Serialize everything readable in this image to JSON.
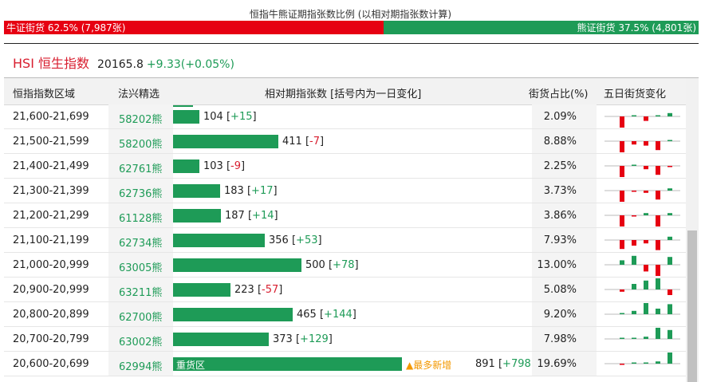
{
  "ratio": {
    "title": "恒指牛熊证期指张数比例 (以相对期指张数计算)",
    "bull_label": "牛证街货 62.5% (7,987张)",
    "bear_label": "熊证街货 37.5% (4,801张)",
    "bull_fraction": 0.625,
    "bear_fraction": 0.375,
    "bull_color": "#e60012",
    "bear_color": "#1e9b57"
  },
  "index": {
    "name": "HSI 恒生指数",
    "value": "20165.8",
    "change": "+9.33(+0.05%)"
  },
  "table": {
    "headers": {
      "range": "恒指指数区域",
      "code": "法兴精选",
      "contracts": "相对期指张数 [括号内为一日变化]",
      "share": "街货占比(%)",
      "spark": "五日街货变化"
    },
    "max_contracts": 891,
    "rows": [
      {
        "range": "21,600-21,699",
        "code": "58202熊",
        "contracts": 104,
        "change": "+15",
        "share": "2.09%",
        "spark": [
          -1.0,
          0.1,
          -0.4,
          0.1,
          0.3
        ]
      },
      {
        "range": "21,500-21,599",
        "code": "58200熊",
        "contracts": 411,
        "change": "-7",
        "share": "8.88%",
        "spark": [
          -1.0,
          -0.3,
          -0.4,
          -0.8,
          0.0
        ]
      },
      {
        "range": "21,400-21,499",
        "code": "62761熊",
        "contracts": 103,
        "change": "-9",
        "share": "2.25%",
        "spark": [
          -1.0,
          0.1,
          -0.3,
          -0.8,
          -0.1
        ]
      },
      {
        "range": "21,300-21,399",
        "code": "62736熊",
        "contracts": 183,
        "change": "+17",
        "share": "3.73%",
        "spark": [
          -1.0,
          -0.1,
          -0.2,
          -0.8,
          0.2
        ]
      },
      {
        "range": "21,200-21,299",
        "code": "61128熊",
        "contracts": 187,
        "change": "+14",
        "share": "3.86%",
        "spark": [
          -1.0,
          -0.1,
          0.2,
          -1.0,
          0.2
        ]
      },
      {
        "range": "21,100-21,199",
        "code": "62734熊",
        "contracts": 356,
        "change": "+53",
        "share": "7.93%",
        "spark": [
          -0.8,
          -0.5,
          -0.3,
          -0.9,
          0.3
        ]
      },
      {
        "range": "21,000-20,999",
        "code": "63005熊",
        "contracts": 500,
        "change": "+78",
        "share": "13.00%",
        "spark": [
          0.4,
          0.8,
          -0.6,
          -1.0,
          0.7
        ]
      },
      {
        "range": "20,900-20,999",
        "code": "63211熊",
        "contracts": 223,
        "change": "-57",
        "share": "5.08%",
        "spark": [
          -0.2,
          0.5,
          0.8,
          1.0,
          -0.5
        ]
      },
      {
        "range": "20,800-20,899",
        "code": "62700熊",
        "contracts": 465,
        "change": "+144",
        "share": "9.20%",
        "spark": [
          0.1,
          0.3,
          1.0,
          0.5,
          0.9
        ]
      },
      {
        "range": "20,700-20,799",
        "code": "63002熊",
        "contracts": 373,
        "change": "+129",
        "share": "7.98%",
        "spark": [
          0.05,
          0.1,
          0.2,
          1.0,
          0.8
        ]
      },
      {
        "range": "20,600-20,699",
        "code": "62994熊",
        "contracts": 891,
        "change": "+798",
        "share": "19.69%",
        "spark": [
          -0.1,
          0.05,
          0.1,
          0.2,
          1.0
        ],
        "badge": "重货区",
        "note": "▲最多新增"
      }
    ]
  }
}
